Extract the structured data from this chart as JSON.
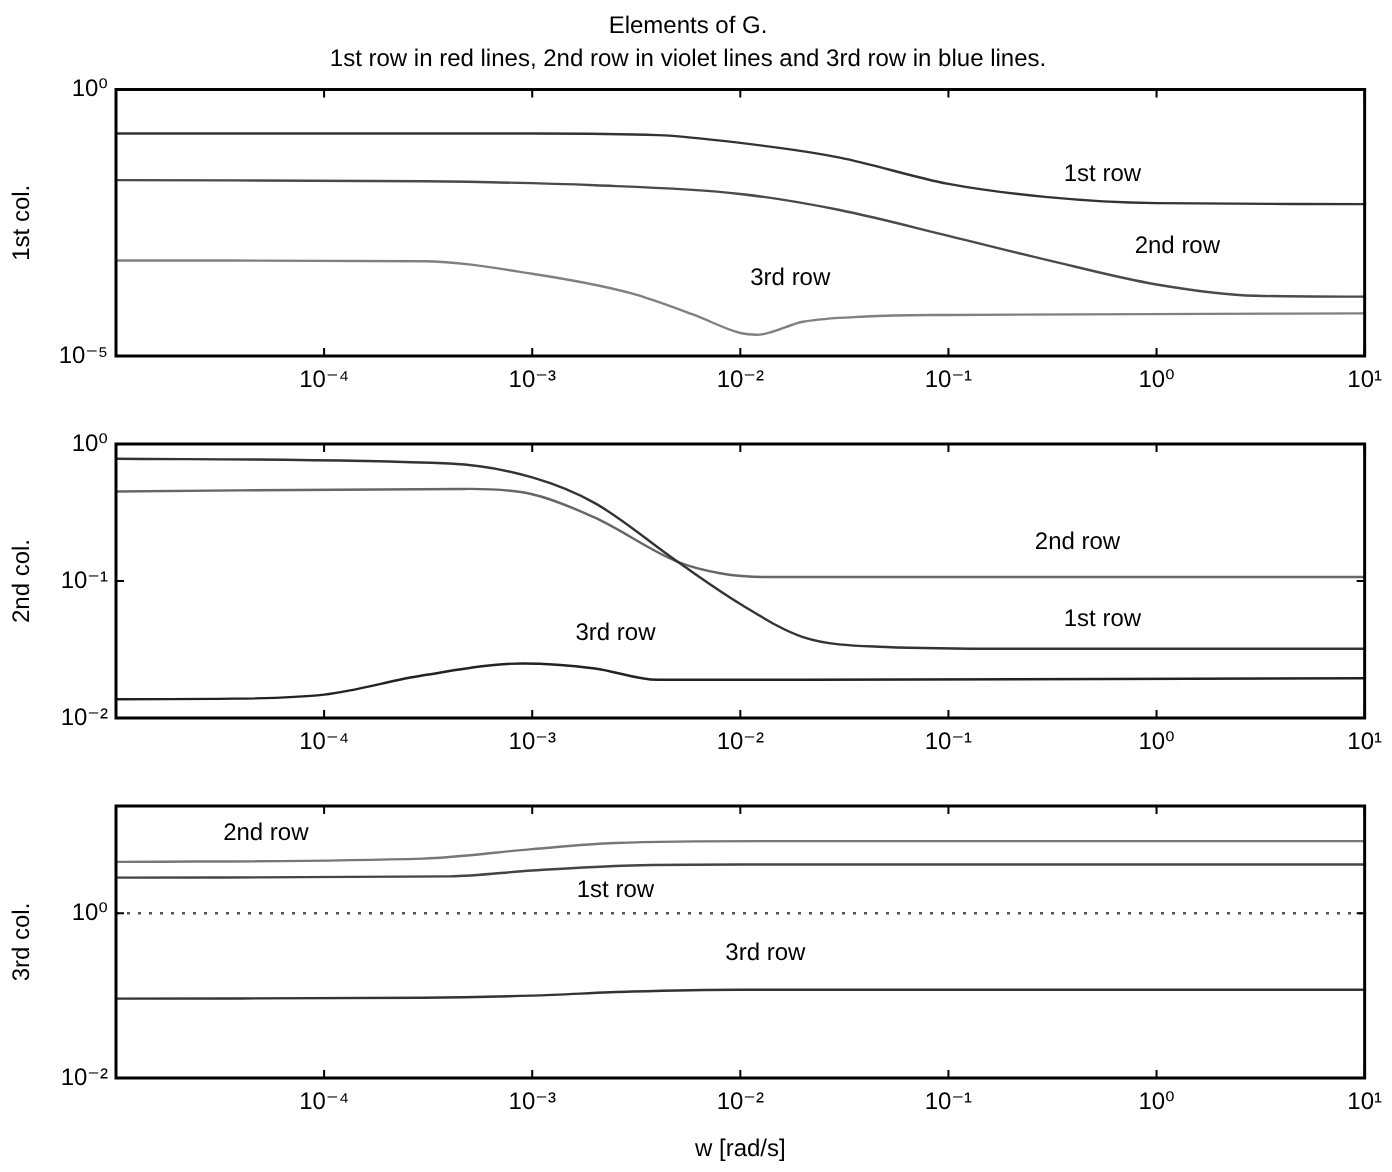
{
  "chart_data": [
    {
      "type": "line",
      "title": "Elements of G.",
      "subtitle": "1st row in red lines, 2nd row in violet lines and 3rd row in blue lines.",
      "ylabel": "1st col.",
      "log": "xy",
      "marker": "none",
      "xlim": [
        1e-05,
        10
      ],
      "xticks": [
        {
          "value": 0.0001,
          "label": "10⁻⁴"
        },
        {
          "value": 0.001,
          "label": "10⁻³"
        },
        {
          "value": 0.01,
          "label": "10⁻²"
        },
        {
          "value": 0.1,
          "label": "10⁻¹"
        },
        {
          "value": 1,
          "label": "10⁰"
        },
        {
          "value": 10,
          "label": "10¹"
        }
      ],
      "ylim": [
        1e-05,
        1
      ],
      "yticks": [
        {
          "value": 1e-05,
          "label": "10⁻⁵"
        },
        {
          "value": 1,
          "label": "10⁰"
        }
      ],
      "series": [
        {
          "name": "1st row",
          "color": "#333333",
          "x": [
            1e-05,
            0.001,
            0.004,
            0.01,
            0.03,
            0.1,
            0.3,
            1,
            10
          ],
          "values": [
            0.15,
            0.15,
            0.14,
            0.1,
            0.053,
            0.017,
            0.0096,
            0.0074,
            0.0071
          ]
        },
        {
          "name": "2nd row",
          "color": "#4a4a4a",
          "x": [
            1e-05,
            0.0003,
            0.002,
            0.01,
            0.03,
            0.1,
            0.3,
            1,
            3,
            10
          ],
          "values": [
            0.02,
            0.019,
            0.016,
            0.011,
            0.0055,
            0.0018,
            0.00063,
            0.00022,
            0.000135,
            0.00013
          ]
        },
        {
          "name": "3rd row",
          "color": "#808080",
          "x": [
            1e-05,
            0.0003,
            0.001,
            0.003,
            0.006,
            0.01,
            0.012,
            0.02,
            0.04,
            0.1,
            10
          ],
          "values": [
            0.00062,
            0.0006,
            0.00035,
            0.00015,
            5.9e-05,
            2.7e-05,
            2.5e-05,
            4.4e-05,
            5.5e-05,
            5.9e-05,
            6.3e-05
          ]
        }
      ]
    },
    {
      "type": "line",
      "ylabel": "2nd col.",
      "log": "xy",
      "marker": "none",
      "xlim": [
        1e-05,
        10
      ],
      "xticks": [
        {
          "value": 0.0001,
          "label": "10⁻⁴"
        },
        {
          "value": 0.001,
          "label": "10⁻³"
        },
        {
          "value": 0.01,
          "label": "10⁻²"
        },
        {
          "value": 0.1,
          "label": "10⁻¹"
        },
        {
          "value": 1,
          "label": "10⁰"
        },
        {
          "value": 10,
          "label": "10¹"
        }
      ],
      "ylim": [
        0.01,
        1
      ],
      "yticks": [
        {
          "value": 0.01,
          "label": "10⁻²"
        },
        {
          "value": 0.1,
          "label": "10⁻¹"
        },
        {
          "value": 1,
          "label": "10⁰"
        }
      ],
      "series": [
        {
          "name": "1st row",
          "color": "#333333",
          "x": [
            1e-05,
            0.0004,
            0.001,
            0.002,
            0.005,
            0.01,
            0.02,
            0.05,
            0.2,
            10
          ],
          "values": [
            0.78,
            0.72,
            0.57,
            0.37,
            0.138,
            0.068,
            0.039,
            0.033,
            0.032,
            0.032
          ]
        },
        {
          "name": "2nd row",
          "color": "#666666",
          "x": [
            1e-05,
            0.0005,
            0.001,
            0.002,
            0.005,
            0.008,
            0.013,
            10
          ],
          "values": [
            0.45,
            0.47,
            0.43,
            0.29,
            0.138,
            0.114,
            0.107,
            0.107
          ]
        },
        {
          "name": "3rd row",
          "color": "#222222",
          "x": [
            1e-05,
            3e-05,
            0.0001,
            0.0003,
            0.0009,
            0.002,
            0.004,
            0.01,
            10
          ],
          "values": [
            0.0137,
            0.0138,
            0.0148,
            0.0205,
            0.025,
            0.023,
            0.019,
            0.019,
            0.0195
          ]
        }
      ]
    },
    {
      "type": "line",
      "ylabel": "3rd col.",
      "xlabel": "w [rad/s]",
      "log": "xy",
      "marker": "none",
      "xlim": [
        1e-05,
        10
      ],
      "xticks": [
        {
          "value": 0.0001,
          "label": "10⁻⁴"
        },
        {
          "value": 0.001,
          "label": "10⁻³"
        },
        {
          "value": 0.01,
          "label": "10⁻²"
        },
        {
          "value": 0.1,
          "label": "10⁻¹"
        },
        {
          "value": 1,
          "label": "10⁰"
        },
        {
          "value": 10,
          "label": "10¹"
        }
      ],
      "ylim": [
        0.01,
        20
      ],
      "yticks": [
        {
          "value": 0.01,
          "label": "10⁻²"
        },
        {
          "value": 1,
          "label": "10⁰"
        }
      ],
      "series": [
        {
          "name": "1st row",
          "color": "#444444",
          "x": [
            1e-05,
            0.0004,
            0.001,
            0.003,
            0.01,
            10
          ],
          "values": [
            2.7,
            2.8,
            3.3,
            3.8,
            3.9,
            3.9
          ]
        },
        {
          "name": "2nd row",
          "color": "#777777",
          "x": [
            1e-05,
            0.0003,
            0.001,
            0.0025,
            0.013,
            10
          ],
          "values": [
            4.2,
            4.6,
            6,
            7.1,
            7.5,
            7.5
          ]
        },
        {
          "name": "3rd row",
          "color": "#333333",
          "x": [
            1e-05,
            0.0003,
            0.001,
            0.003,
            0.01,
            10
          ],
          "values": [
            0.092,
            0.094,
            0.1,
            0.112,
            0.118,
            0.118
          ]
        }
      ],
      "ref_lines": [
        {
          "axis": "y",
          "value": 1,
          "color": "#555555",
          "line_style": "dotted"
        }
      ]
    }
  ]
}
